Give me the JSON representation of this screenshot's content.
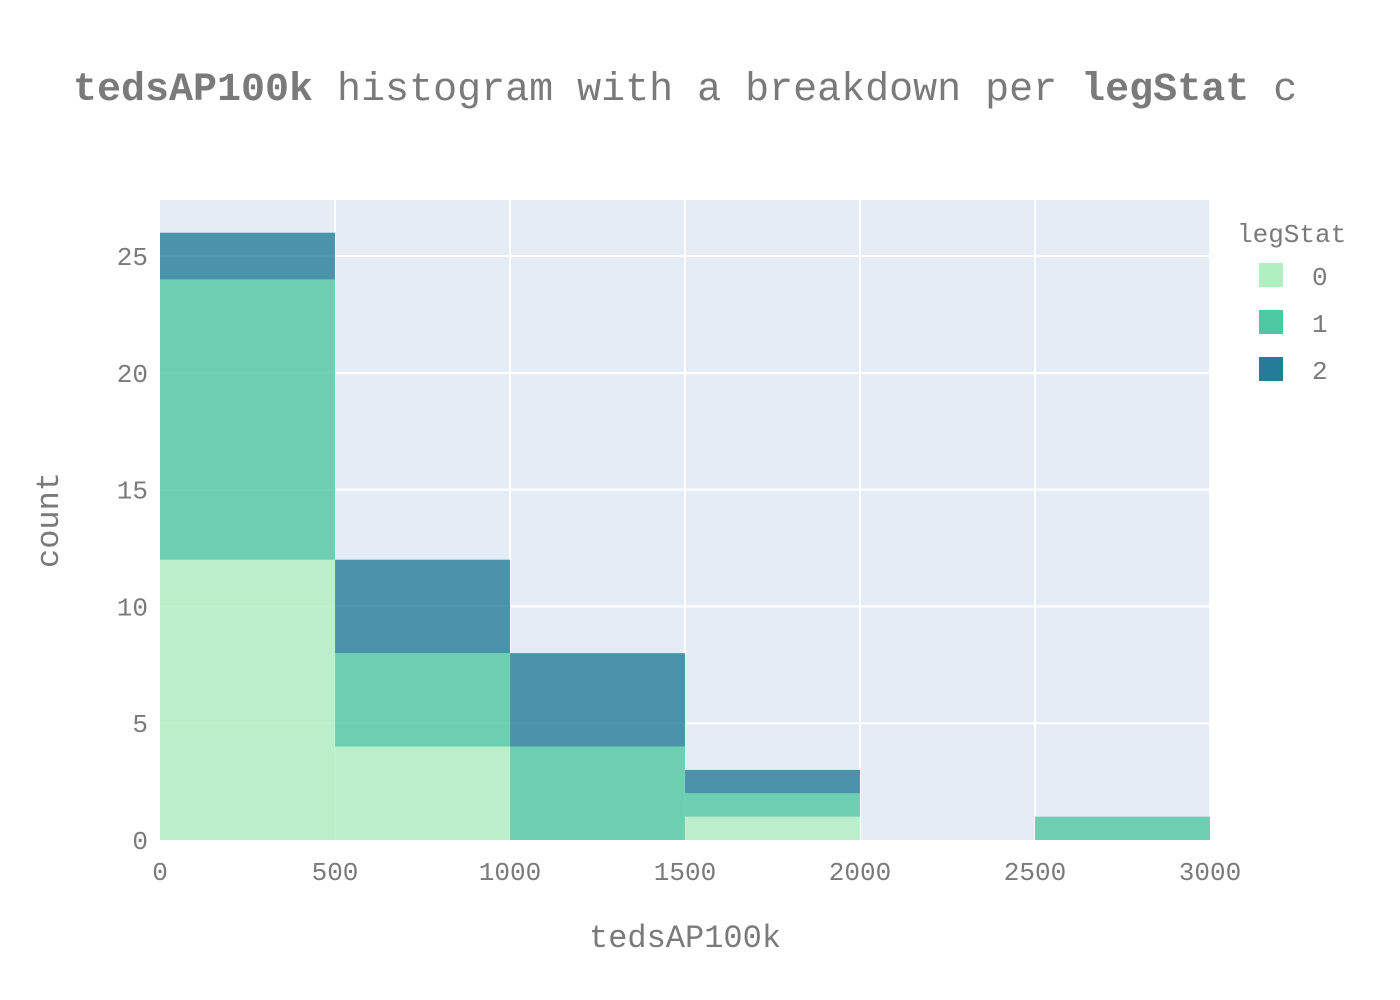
{
  "chart_data": {
    "type": "bar",
    "barmode": "stack",
    "title_parts": [
      {
        "text": "tedsAP100k",
        "bold": true
      },
      {
        "text": " histogram with a breakdown per ",
        "bold": false
      },
      {
        "text": "legStat",
        "bold": true
      },
      {
        "text": " c",
        "bold": false
      }
    ],
    "xlabel": "tedsAP100k",
    "ylabel": "count",
    "bins": [
      [
        0,
        500
      ],
      [
        500,
        1000
      ],
      [
        1000,
        1500
      ],
      [
        1500,
        2000
      ],
      [
        2000,
        2500
      ],
      [
        2500,
        3000
      ]
    ],
    "xlim": [
      0,
      3000
    ],
    "ylim": [
      0,
      27.4
    ],
    "xticks": [
      0,
      500,
      1000,
      1500,
      2000,
      2500,
      3000
    ],
    "xtick_labels": [
      "0",
      "500",
      "1000",
      "1500",
      "2000",
      "2500",
      "3000"
    ],
    "yticks": [
      0,
      5,
      10,
      15,
      20,
      25
    ],
    "ytick_labels": [
      "0",
      "5",
      "10",
      "15",
      "20",
      "25"
    ],
    "legend": {
      "title": "legStat",
      "placement": "right"
    },
    "grid": true,
    "plot_background": "#e5ecf6",
    "series": [
      {
        "name": "0",
        "color": "#b0f0c0",
        "values": [
          12,
          4,
          0,
          1,
          0,
          0
        ]
      },
      {
        "name": "1",
        "color": "#4dc8a0",
        "values": [
          12,
          4,
          4,
          1,
          0,
          1
        ]
      },
      {
        "name": "2",
        "color": "#237d97",
        "values": [
          2,
          4,
          4,
          1,
          0,
          0
        ]
      }
    ]
  }
}
